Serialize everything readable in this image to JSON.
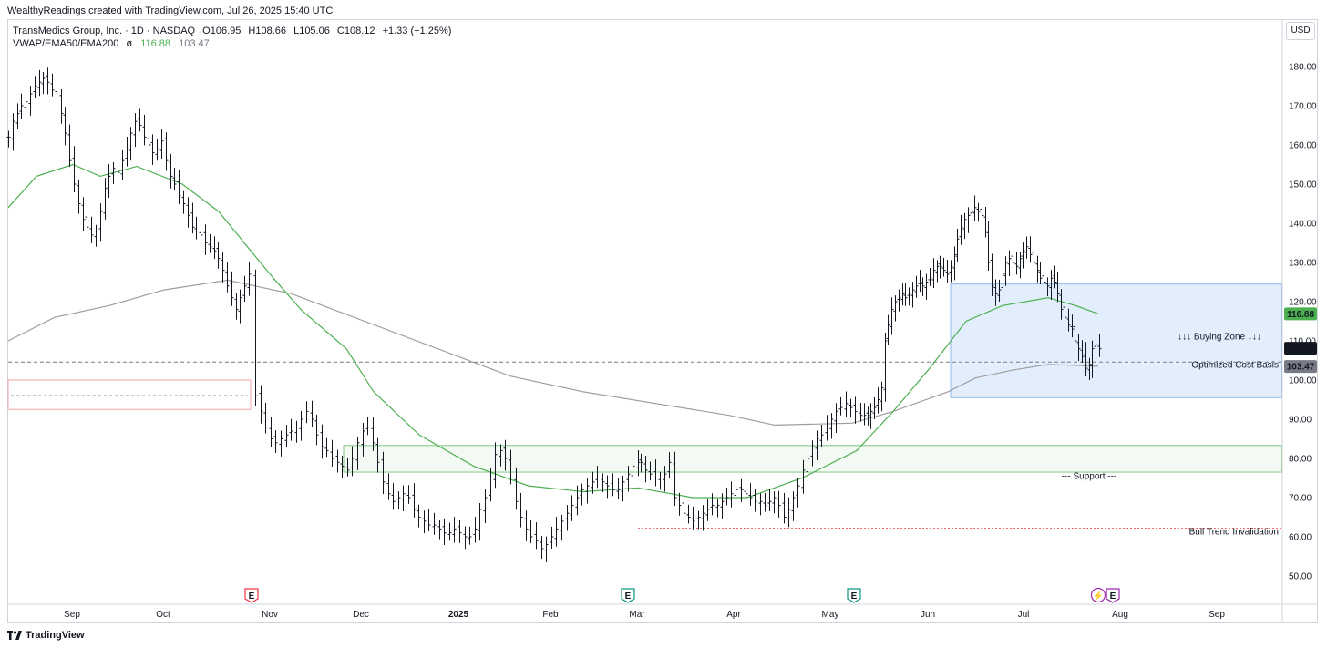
{
  "header": {
    "attribution": "WealthyReadings created with TradingView.com, Jul 26, 2025 15:40 UTC",
    "symbol": "TransMedics Group, Inc. · 1D · NASDAQ",
    "open": "O106.95",
    "high": "H108.66",
    "low": "L105.06",
    "close": "C108.12",
    "change": "+1.33 (+1.25%)",
    "indicator_name": "VWAP/EMA50/EMA200",
    "indicator_symbol": "ø",
    "ema50_value": "116.88",
    "ema200_value": "103.47"
  },
  "currency_button": "USD",
  "footer": {
    "logo_text": "TradingView"
  },
  "colors": {
    "candle": "#131722",
    "ema50": "#4caf50",
    "ema200": "#9e9e9e",
    "buy_zone_fill": "#e3eefc",
    "buy_zone_border": "#90b8ea",
    "support_fill": "#f3faf3",
    "support_border": "#81c784",
    "invalidation": "#f06b6b",
    "earnings_red": "#f23645",
    "earnings_green": "#089981",
    "earnings_purple": "#9c27b0"
  },
  "chart_data": {
    "type": "ohlc",
    "x": [
      "Sep",
      "Oct",
      "Nov",
      "Dec",
      "2025",
      "Feb",
      "Mar",
      "Apr",
      "May",
      "Jun",
      "Jul",
      "Aug",
      "Sep"
    ],
    "y_ticks": [
      "180.00",
      "170.00",
      "160.00",
      "150.00",
      "140.00",
      "130.00",
      "120.00",
      "110.00",
      "100.00",
      "90.00",
      "80.00",
      "70.00",
      "60.00",
      "50.00"
    ],
    "ylim": [
      47.5,
      183.5
    ],
    "price_labels": [
      {
        "name": "EMA50",
        "value": "116.88",
        "color": "#4caf50"
      },
      {
        "name": "Close",
        "value": "108.12",
        "color": "#131722"
      },
      {
        "name": "EMA200",
        "value": "103.47",
        "color": "#787b86"
      }
    ],
    "annotations": [
      {
        "text": "↓↓↓ Buying Zone ↓↓↓",
        "price_range": [
          95.5,
          124.5
        ]
      },
      {
        "text": "Optimized Cost Basis",
        "price": 104.6
      },
      {
        "text": "--- Support ---",
        "price_range": [
          76.5,
          83.3
        ]
      },
      {
        "text": "Bull Trend Invalidation",
        "price": 62.2
      }
    ],
    "earnings_markers": [
      {
        "date": "Oct 29",
        "label": "E",
        "color": "red"
      },
      {
        "date": "Feb 26",
        "label": "E",
        "color": "green"
      },
      {
        "date": "May 8",
        "label": "E",
        "color": "green"
      },
      {
        "date": "Jul 30",
        "label": "⚡",
        "color": "purple"
      },
      {
        "date": "Jul 30",
        "label": "E",
        "color": "purple"
      }
    ],
    "closes": [
      162,
      166,
      168,
      170,
      171,
      173,
      175,
      176,
      177,
      176,
      174,
      172,
      168,
      163,
      156,
      150,
      145,
      141,
      139,
      137,
      138,
      143,
      149,
      152,
      154,
      153,
      156,
      159,
      163,
      166,
      165,
      162,
      160,
      158,
      159,
      161,
      156,
      152,
      150,
      147,
      145,
      142,
      139,
      138,
      137,
      135,
      134,
      133,
      131,
      128,
      124,
      121,
      118,
      121,
      124,
      127,
      96,
      92,
      88,
      85,
      84,
      85,
      86,
      87,
      88,
      90,
      92,
      90,
      86,
      83,
      82,
      80,
      79,
      78,
      77,
      80,
      84,
      87,
      88,
      84,
      79,
      74,
      71,
      69,
      70,
      71,
      70,
      67,
      65,
      64,
      63,
      63,
      62,
      61,
      61,
      62,
      61,
      60,
      60,
      62,
      67,
      70,
      75,
      81,
      82,
      80,
      75,
      69,
      65,
      62,
      60,
      59,
      57,
      58,
      60,
      62,
      64,
      66,
      68,
      70,
      72,
      73,
      74,
      75,
      74,
      73,
      72,
      72,
      74,
      76,
      78,
      79,
      79,
      77,
      76,
      75,
      75,
      76,
      79,
      70,
      68,
      66,
      65,
      64,
      65,
      66,
      67,
      68,
      68,
      69,
      70,
      71,
      72,
      72,
      71,
      70,
      69,
      69,
      68,
      69,
      70,
      68,
      65,
      67,
      70,
      73,
      77,
      80,
      83,
      85,
      86,
      88,
      90,
      92,
      93,
      94,
      93,
      92,
      91,
      91,
      91,
      92,
      93,
      95,
      98,
      110,
      114,
      118,
      120,
      121,
      122,
      121,
      122,
      123,
      124,
      125,
      124,
      125,
      126,
      128,
      129,
      129,
      128,
      127,
      129,
      132,
      136,
      139,
      141,
      142,
      143,
      144,
      143,
      142,
      138,
      130,
      124,
      122,
      123,
      127,
      130,
      131,
      130,
      129,
      131,
      133,
      134,
      132,
      130,
      128,
      126,
      125,
      124,
      126,
      125,
      122,
      118,
      116,
      114,
      113,
      110,
      108,
      106,
      103,
      104,
      108,
      109,
      108
    ]
  }
}
